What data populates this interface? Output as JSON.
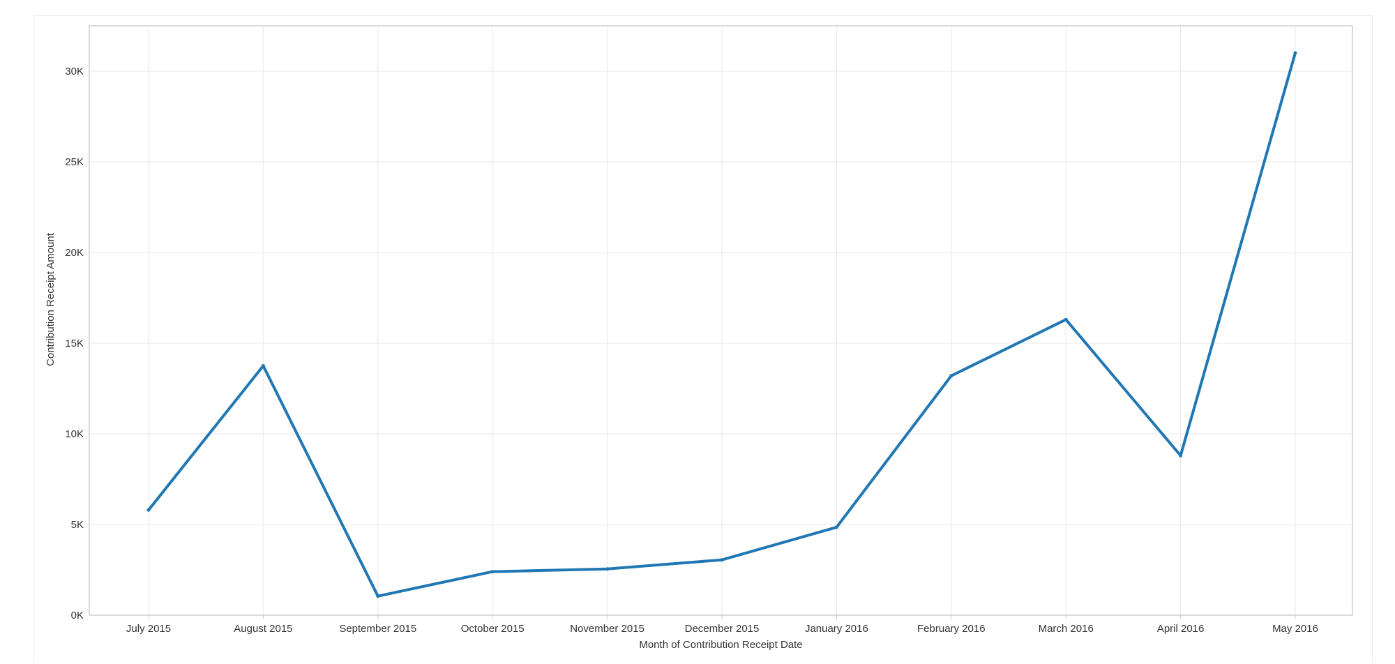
{
  "chart_data": {
    "type": "line",
    "xlabel": "Month of Contribution Receipt Date",
    "ylabel": "Contribution Receipt Amount",
    "categories": [
      "July 2015",
      "August 2015",
      "September 2015",
      "October 2015",
      "November 2015",
      "December 2015",
      "January 2016",
      "February 2016",
      "March 2016",
      "April 2016",
      "May 2016"
    ],
    "series": [
      {
        "values": [
          5800,
          13750,
          1050,
          2400,
          2550,
          3050,
          4850,
          13200,
          16300,
          8800,
          31000
        ]
      }
    ],
    "yticks": [
      0,
      5000,
      10000,
      15000,
      20000,
      25000,
      30000
    ],
    "ytick_labels": [
      "0K",
      "5K",
      "10K",
      "15K",
      "20K",
      "25K",
      "30K"
    ],
    "ylim": [
      0,
      32500
    ],
    "grid": true,
    "line_color": "#1f77b4"
  }
}
